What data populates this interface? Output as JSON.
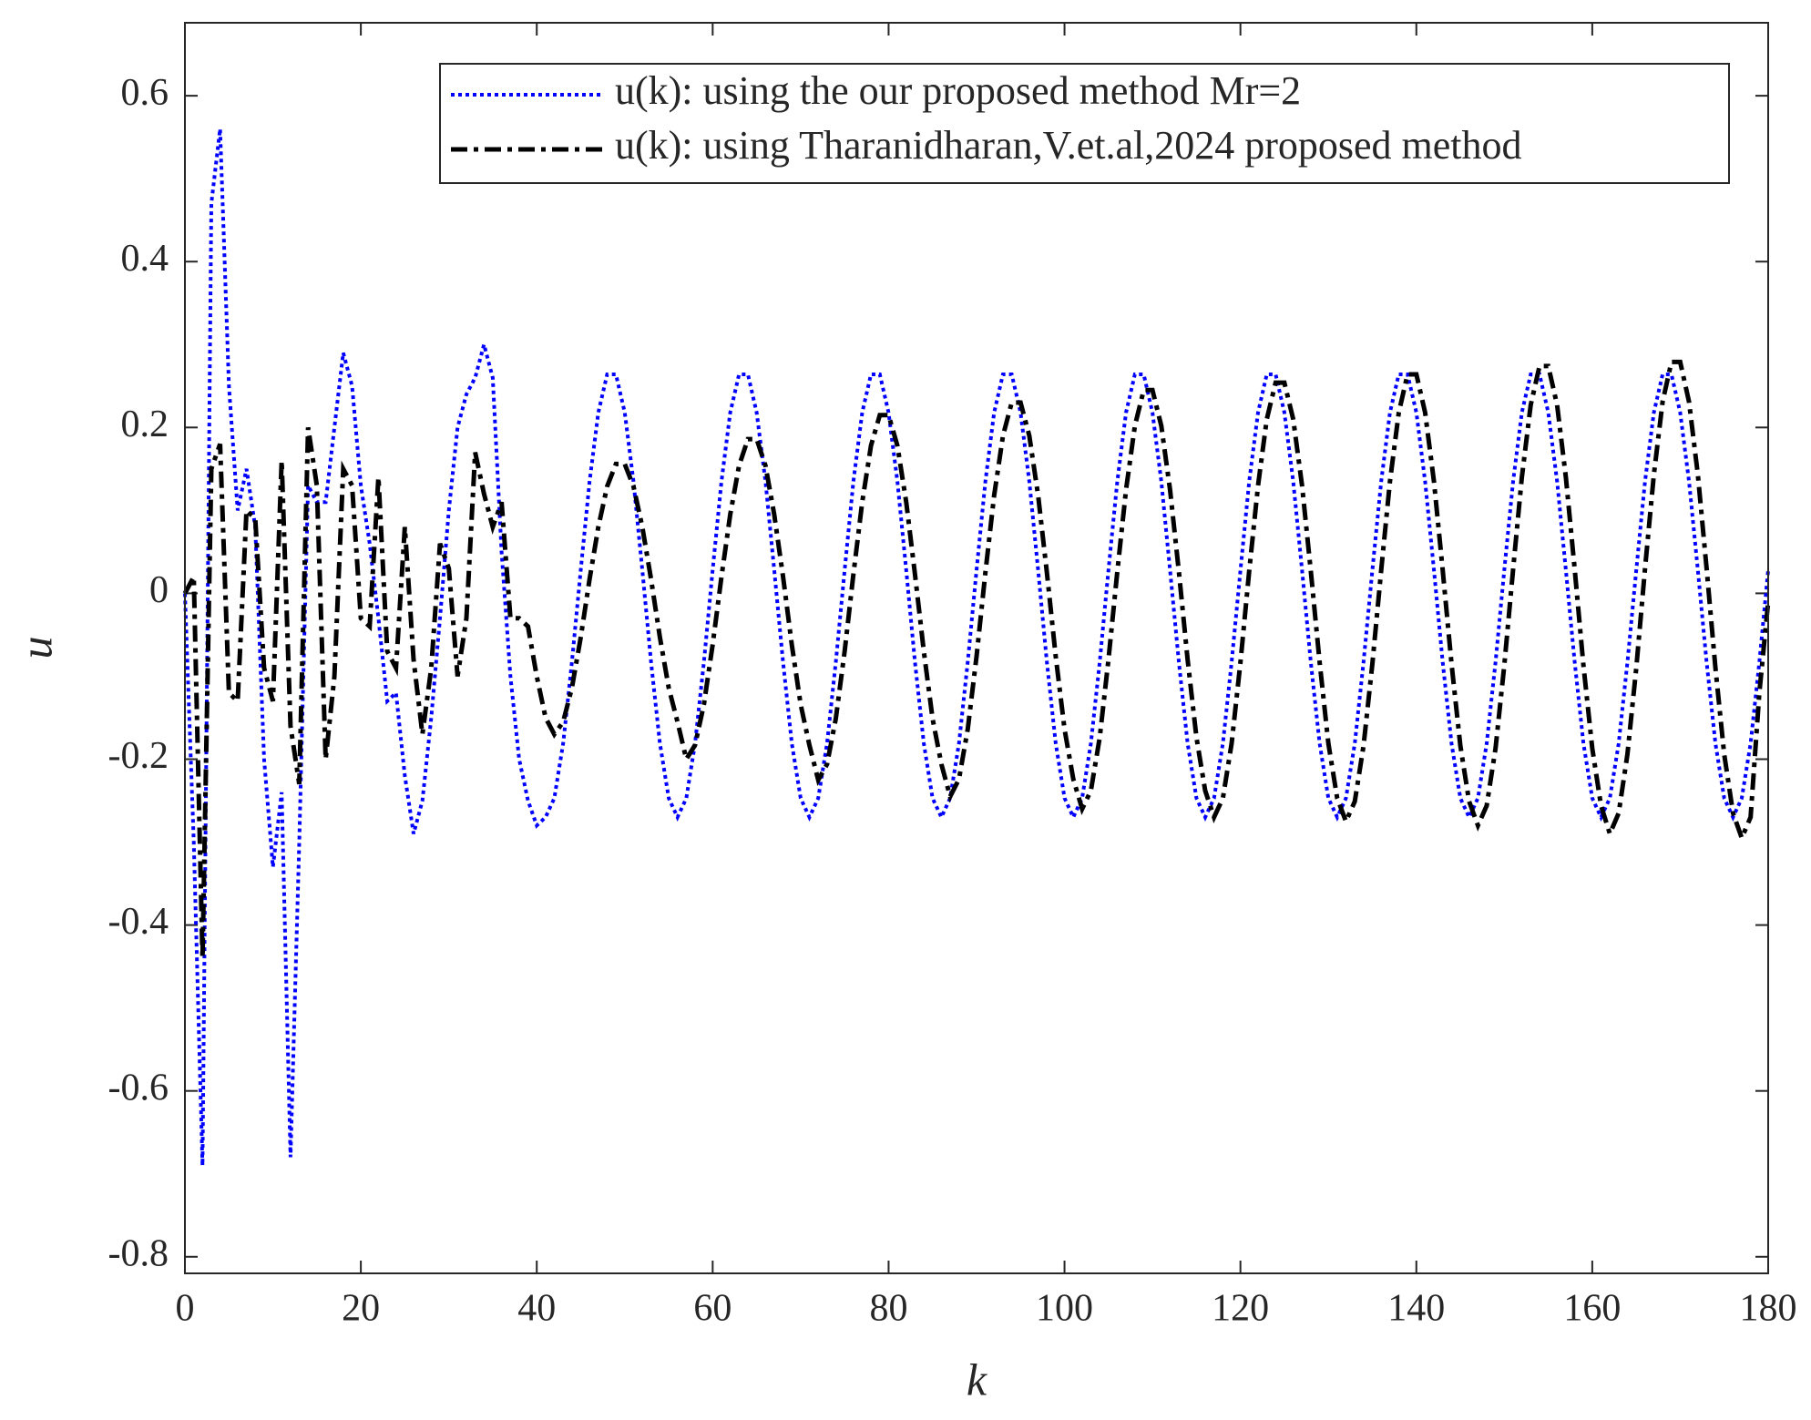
{
  "chart_data": {
    "type": "line",
    "x_label": "k",
    "y_label": "u",
    "x": [
      0,
      1,
      2,
      3,
      4,
      5,
      6,
      7,
      8,
      9,
      10,
      11,
      12,
      13,
      14,
      15,
      16,
      17,
      18,
      19,
      20,
      21,
      22,
      23,
      24,
      25,
      26,
      27,
      28,
      29,
      30,
      31,
      32,
      33,
      34,
      35,
      36,
      37,
      38,
      39,
      40,
      41,
      42,
      43,
      44,
      45,
      46,
      47,
      48,
      49,
      50,
      51,
      52,
      53,
      54,
      55,
      56,
      57,
      58,
      59,
      60,
      61,
      62,
      63,
      64,
      65,
      66,
      67,
      68,
      69,
      70,
      71,
      72,
      73,
      74,
      75,
      76,
      77,
      78,
      79,
      80,
      81,
      82,
      83,
      84,
      85,
      86,
      87,
      88,
      89,
      90,
      91,
      92,
      93,
      94,
      95,
      96,
      97,
      98,
      99,
      100,
      101,
      102,
      103,
      104,
      105,
      106,
      107,
      108,
      109,
      110,
      111,
      112,
      113,
      114,
      115,
      116,
      117,
      118,
      119,
      120,
      121,
      122,
      123,
      124,
      125,
      126,
      127,
      128,
      129,
      130,
      131,
      132,
      133,
      134,
      135,
      136,
      137,
      138,
      139,
      140,
      141,
      142,
      143,
      144,
      145,
      146,
      147,
      148,
      149,
      150,
      151,
      152,
      153,
      154,
      155,
      156,
      157,
      158,
      159,
      160,
      161,
      162,
      163,
      164,
      165,
      166,
      167,
      168,
      169,
      170,
      171,
      172,
      173,
      174,
      175,
      176,
      177,
      178,
      179,
      180
    ],
    "series": [
      {
        "name": "u(k): using the our proposed method Mr=2",
        "color": "#0000ff",
        "style": "dotted",
        "values": [
          0,
          -0.3,
          -0.69,
          0.47,
          0.56,
          0.25,
          0.1,
          0.15,
          0.08,
          -0.2,
          -0.33,
          -0.24,
          -0.68,
          -0.3,
          0.13,
          0.11,
          0.11,
          0.2,
          0.29,
          0.25,
          0.13,
          0.06,
          -0.03,
          -0.13,
          -0.12,
          -0.22,
          -0.29,
          -0.25,
          -0.15,
          -0.03,
          0.1,
          0.2,
          0.24,
          0.26,
          0.3,
          0.26,
          0.05,
          -0.1,
          -0.2,
          -0.25,
          -0.28,
          -0.27,
          -0.247,
          -0.181,
          -0.083,
          0.028,
          0.135,
          0.218,
          0.264,
          0.264,
          0.218,
          0.135,
          0.028,
          -0.083,
          -0.181,
          -0.247,
          -0.27,
          -0.247,
          -0.181,
          -0.083,
          0.028,
          0.135,
          0.218,
          0.264,
          0.264,
          0.218,
          0.135,
          0.028,
          -0.083,
          -0.181,
          -0.247,
          -0.27,
          -0.247,
          -0.181,
          -0.083,
          0.028,
          0.135,
          0.218,
          0.264,
          0.264,
          0.218,
          0.135,
          0.028,
          -0.083,
          -0.181,
          -0.247,
          -0.27,
          -0.247,
          -0.181,
          -0.083,
          0.028,
          0.135,
          0.218,
          0.264,
          0.264,
          0.218,
          0.135,
          0.028,
          -0.083,
          -0.181,
          -0.247,
          -0.27,
          -0.247,
          -0.181,
          -0.083,
          0.028,
          0.135,
          0.218,
          0.264,
          0.264,
          0.218,
          0.135,
          0.028,
          -0.083,
          -0.181,
          -0.247,
          -0.27,
          -0.247,
          -0.181,
          -0.083,
          0.028,
          0.135,
          0.218,
          0.264,
          0.264,
          0.218,
          0.135,
          0.028,
          -0.083,
          -0.181,
          -0.247,
          -0.27,
          -0.247,
          -0.181,
          -0.083,
          0.028,
          0.135,
          0.218,
          0.264,
          0.264,
          0.218,
          0.135,
          0.028,
          -0.083,
          -0.181,
          -0.247,
          -0.27,
          -0.247,
          -0.181,
          -0.083,
          0.028,
          0.135,
          0.218,
          0.264,
          0.264,
          0.218,
          0.135,
          0.028,
          -0.083,
          -0.181,
          -0.247,
          -0.27,
          -0.247,
          -0.181,
          -0.083,
          0.028,
          0.135,
          0.218,
          0.264,
          0.264,
          0.218,
          0.135,
          0.028,
          -0.083,
          -0.181,
          -0.247,
          -0.27,
          -0.247,
          -0.181,
          -0.083,
          0.028
        ]
      },
      {
        "name": "u(k): using Tharanidharan,V.et.al,2024 proposed method",
        "color": "#000000",
        "style": "dashdot",
        "values": [
          0,
          0.02,
          -0.44,
          0.15,
          0.18,
          -0.12,
          -0.13,
          0.1,
          0.09,
          -0.09,
          -0.13,
          0.16,
          -0.16,
          -0.23,
          0.2,
          0.13,
          -0.2,
          -0.1,
          0.15,
          0.13,
          -0.03,
          -0.04,
          0.14,
          -0.07,
          -0.09,
          0.08,
          -0.08,
          -0.17,
          -0.09,
          0.06,
          0.03,
          -0.1,
          -0.03,
          0.17,
          0.12,
          0.08,
          0.11,
          -0.03,
          -0.03,
          -0.04,
          -0.1,
          -0.15,
          -0.17,
          -0.155,
          -0.114,
          -0.053,
          0.017,
          0.08,
          0.129,
          0.156,
          0.156,
          0.129,
          0.08,
          0.017,
          -0.053,
          -0.114,
          -0.155,
          -0.2,
          -0.183,
          -0.134,
          -0.062,
          0.02,
          0.095,
          0.154,
          0.186,
          0.186,
          0.154,
          0.095,
          0.02,
          -0.062,
          -0.134,
          -0.183,
          -0.225,
          -0.206,
          -0.151,
          -0.07,
          0.023,
          0.11,
          0.178,
          0.215,
          0.215,
          0.178,
          0.11,
          0.023,
          -0.07,
          -0.151,
          -0.206,
          -0.245,
          -0.224,
          -0.164,
          -0.076,
          0.025,
          0.118,
          0.19,
          0.23,
          0.23,
          0.19,
          0.118,
          0.025,
          -0.076,
          -0.164,
          -0.224,
          -0.26,
          -0.238,
          -0.174,
          -0.08,
          0.026,
          0.125,
          0.202,
          0.245,
          0.245,
          0.202,
          0.125,
          0.026,
          -0.08,
          -0.174,
          -0.238,
          -0.27,
          -0.247,
          -0.181,
          -0.083,
          0.027,
          0.13,
          0.21,
          0.254,
          0.254,
          0.21,
          0.13,
          0.027,
          -0.083,
          -0.181,
          -0.247,
          -0.275,
          -0.251,
          -0.184,
          -0.085,
          0.028,
          0.135,
          0.218,
          0.264,
          0.264,
          0.218,
          0.135,
          0.028,
          -0.085,
          -0.184,
          -0.251,
          -0.28,
          -0.256,
          -0.187,
          -0.087,
          0.029,
          0.14,
          0.227,
          0.274,
          0.274,
          0.227,
          0.14,
          0.029,
          -0.087,
          -0.187,
          -0.256,
          -0.29,
          -0.265,
          -0.194,
          -0.09,
          0.03,
          0.143,
          0.231,
          0.279,
          0.279,
          0.231,
          0.143,
          0.03,
          -0.09,
          -0.194,
          -0.265,
          -0.295,
          -0.27,
          -0.12,
          -0.01
        ]
      }
    ],
    "xlim": [
      0,
      180
    ],
    "xticks": [
      0,
      20,
      40,
      60,
      80,
      100,
      120,
      140,
      160,
      180
    ],
    "ylim": [
      -0.82,
      0.688
    ],
    "yticks": [
      -0.8,
      -0.6,
      -0.4,
      -0.2,
      0,
      0.2,
      0.4,
      0.6
    ],
    "grid": false,
    "legend": "top-right"
  }
}
